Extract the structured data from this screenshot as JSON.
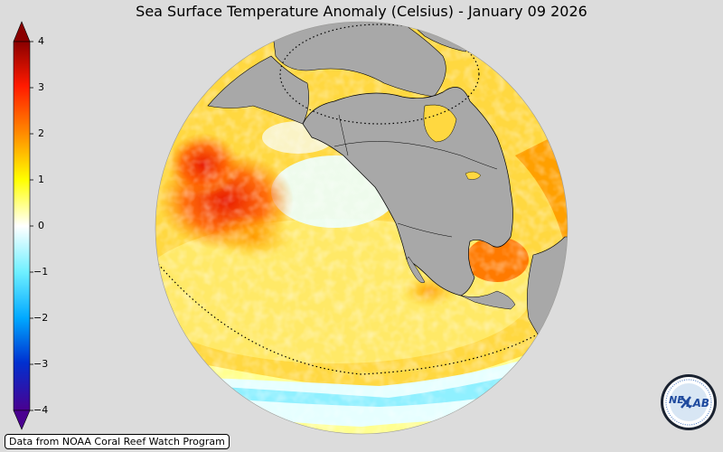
{
  "title": "Sea Surface Temperature Anomaly (Celsius) - January 09 2026",
  "colorbar": {
    "ticks": [
      "4",
      "3",
      "2",
      "1",
      "0",
      "−1",
      "−2",
      "−3",
      "−4"
    ],
    "colors": [
      "#a00000",
      "#ff2000",
      "#ffa000",
      "#ffff00",
      "#ffffff",
      "#80ffff",
      "#00a0ff",
      "#0040c0",
      "#5000a0"
    ]
  },
  "credit": "Data from NOAA Coral Reef Watch Program",
  "logo": {
    "text_top": "NE",
    "text_bottom": "LAB"
  },
  "map_colors": {
    "land": "#a8a8a8",
    "ocean_warm": "#ffd840",
    "ocean_hot": "#ff5000",
    "ocean_cool": "#e6ffff",
    "ocean_cold": "#7fe6ff"
  }
}
